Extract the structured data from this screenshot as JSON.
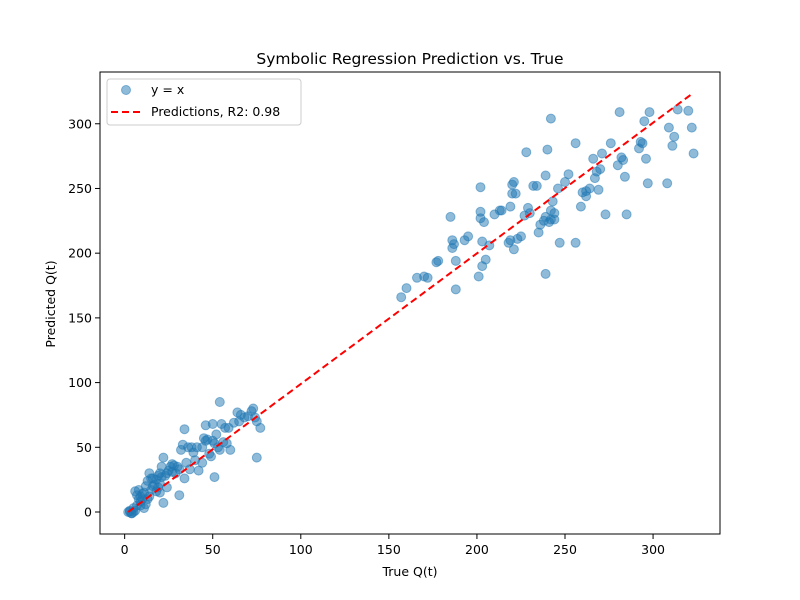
{
  "chart_data": {
    "type": "scatter",
    "title": "Symbolic Regression Prediction vs. True",
    "xlabel": "True Q(t)",
    "ylabel": "Predicted Q(t)",
    "xlim": [
      -14,
      338
    ],
    "ylim": [
      -17,
      340
    ],
    "xticks": [
      0,
      50,
      100,
      150,
      200,
      250,
      300
    ],
    "yticks": [
      0,
      50,
      100,
      150,
      200,
      250,
      300
    ],
    "xtick_labels": [
      "0",
      "50",
      "100",
      "150",
      "200",
      "250",
      "300"
    ],
    "ytick_labels": [
      "0",
      "50",
      "100",
      "150",
      "200",
      "250",
      "300"
    ],
    "grid": false,
    "legend_position": "top-left",
    "series": [
      {
        "name": "y = x",
        "kind": "scatter",
        "color": "#1f77b4",
        "alpha": 0.5,
        "points": [
          [
            2,
            0
          ],
          [
            3,
            0
          ],
          [
            4,
            -1
          ],
          [
            5,
            0
          ],
          [
            3,
            1
          ],
          [
            6,
            1
          ],
          [
            4,
            -1
          ],
          [
            7,
            5
          ],
          [
            8,
            10
          ],
          [
            9,
            12
          ],
          [
            10,
            14
          ],
          [
            8,
            17
          ],
          [
            9,
            8
          ],
          [
            11,
            3
          ],
          [
            12,
            6
          ],
          [
            13,
            10
          ],
          [
            14,
            12
          ],
          [
            15,
            17
          ],
          [
            16,
            20
          ],
          [
            17,
            21
          ],
          [
            12,
            20
          ],
          [
            13,
            24
          ],
          [
            14,
            30
          ],
          [
            15,
            26
          ],
          [
            18,
            25
          ],
          [
            19,
            28
          ],
          [
            20,
            30
          ],
          [
            21,
            35
          ],
          [
            22,
            42
          ],
          [
            23,
            28
          ],
          [
            24,
            30
          ],
          [
            18,
            16
          ],
          [
            20,
            15
          ],
          [
            22,
            7
          ],
          [
            10,
            10
          ],
          [
            11,
            15
          ],
          [
            9,
            5
          ],
          [
            7,
            13
          ],
          [
            6,
            16
          ],
          [
            5,
            3
          ],
          [
            25,
            32
          ],
          [
            26,
            35
          ],
          [
            27,
            37
          ],
          [
            28,
            36
          ],
          [
            29,
            30
          ],
          [
            30,
            35
          ],
          [
            31,
            33
          ],
          [
            32,
            48
          ],
          [
            33,
            52
          ],
          [
            34,
            26
          ],
          [
            35,
            38
          ],
          [
            36,
            50
          ],
          [
            37,
            33
          ],
          [
            38,
            50
          ],
          [
            39,
            46
          ],
          [
            40,
            40
          ],
          [
            31,
            13
          ],
          [
            34,
            64
          ],
          [
            42,
            32
          ],
          [
            44,
            38
          ],
          [
            46,
            55
          ],
          [
            47,
            56
          ],
          [
            48,
            45
          ],
          [
            49,
            43
          ],
          [
            50,
            55
          ],
          [
            51,
            53
          ],
          [
            52,
            60
          ],
          [
            53,
            50
          ],
          [
            54,
            48
          ],
          [
            55,
            68
          ],
          [
            56,
            54
          ],
          [
            46,
            67
          ],
          [
            50,
            68
          ],
          [
            51,
            27
          ],
          [
            54,
            85
          ],
          [
            57,
            65
          ],
          [
            58,
            53
          ],
          [
            59,
            65
          ],
          [
            60,
            48
          ],
          [
            62,
            69
          ],
          [
            64,
            77
          ],
          [
            65,
            70
          ],
          [
            66,
            75
          ],
          [
            68,
            73
          ],
          [
            70,
            74
          ],
          [
            72,
            78
          ],
          [
            73,
            80
          ],
          [
            74,
            73
          ],
          [
            75,
            70
          ],
          [
            75,
            42
          ],
          [
            77,
            65
          ],
          [
            45,
            57
          ],
          [
            44,
            50
          ],
          [
            41,
            50
          ],
          [
            24,
            19
          ],
          [
            27,
            31
          ],
          [
            16,
            26
          ],
          [
            19,
            19
          ],
          [
            20,
            22
          ],
          [
            21,
            27
          ],
          [
            157,
            166
          ],
          [
            160,
            173
          ],
          [
            166,
            181
          ],
          [
            170,
            182
          ],
          [
            172,
            181
          ],
          [
            177,
            193
          ],
          [
            178,
            194
          ],
          [
            185,
            228
          ],
          [
            186,
            210
          ],
          [
            186,
            204
          ],
          [
            187,
            207
          ],
          [
            188,
            194
          ],
          [
            188,
            172
          ],
          [
            193,
            210
          ],
          [
            195,
            213
          ],
          [
            201,
            182
          ],
          [
            202,
            251
          ],
          [
            202,
            232
          ],
          [
            202,
            227
          ],
          [
            203,
            190
          ],
          [
            203,
            209
          ],
          [
            204,
            224
          ],
          [
            205,
            195
          ],
          [
            207,
            206
          ],
          [
            210,
            230
          ],
          [
            213,
            233
          ],
          [
            214,
            233
          ],
          [
            218,
            208
          ],
          [
            219,
            210
          ],
          [
            219,
            236
          ],
          [
            220,
            246
          ],
          [
            220,
            253
          ],
          [
            221,
            203
          ],
          [
            221,
            255
          ],
          [
            222,
            246
          ],
          [
            223,
            211
          ],
          [
            225,
            213
          ],
          [
            227,
            229
          ],
          [
            228,
            278
          ],
          [
            229,
            235
          ],
          [
            230,
            231
          ],
          [
            232,
            252
          ],
          [
            234,
            252
          ],
          [
            235,
            216
          ],
          [
            236,
            222
          ],
          [
            238,
            225
          ],
          [
            239,
            260
          ],
          [
            239,
            228
          ],
          [
            239,
            184
          ],
          [
            240,
            280
          ],
          [
            241,
            224
          ],
          [
            242,
            233
          ],
          [
            242,
            304
          ],
          [
            242,
            226
          ],
          [
            243,
            240
          ],
          [
            244,
            231
          ],
          [
            244,
            226
          ],
          [
            246,
            250
          ],
          [
            247,
            208
          ],
          [
            250,
            255
          ],
          [
            252,
            261
          ],
          [
            256,
            208
          ],
          [
            256,
            285
          ],
          [
            259,
            236
          ],
          [
            260,
            247
          ],
          [
            262,
            248
          ],
          [
            262,
            244
          ],
          [
            264,
            250
          ],
          [
            266,
            273
          ],
          [
            267,
            258
          ],
          [
            268,
            263
          ],
          [
            269,
            249
          ],
          [
            270,
            265
          ],
          [
            271,
            277
          ],
          [
            273,
            230
          ],
          [
            276,
            285
          ],
          [
            280,
            268
          ],
          [
            281,
            309
          ],
          [
            282,
            274
          ],
          [
            283,
            272
          ],
          [
            284,
            259
          ],
          [
            285,
            230
          ],
          [
            292,
            281
          ],
          [
            293,
            286
          ],
          [
            294,
            285
          ],
          [
            295,
            302
          ],
          [
            296,
            273
          ],
          [
            297,
            254
          ],
          [
            298,
            309
          ],
          [
            308,
            254
          ],
          [
            309,
            297
          ],
          [
            311,
            283
          ],
          [
            312,
            290
          ],
          [
            314,
            311
          ],
          [
            320,
            310
          ],
          [
            322,
            297
          ],
          [
            323,
            277
          ]
        ]
      },
      {
        "name": "Predictions, R2: 0.98",
        "kind": "line",
        "color": "#ff0000",
        "style": "dashed",
        "x": [
          2,
          322
        ],
        "y": [
          0,
          323
        ]
      }
    ]
  }
}
